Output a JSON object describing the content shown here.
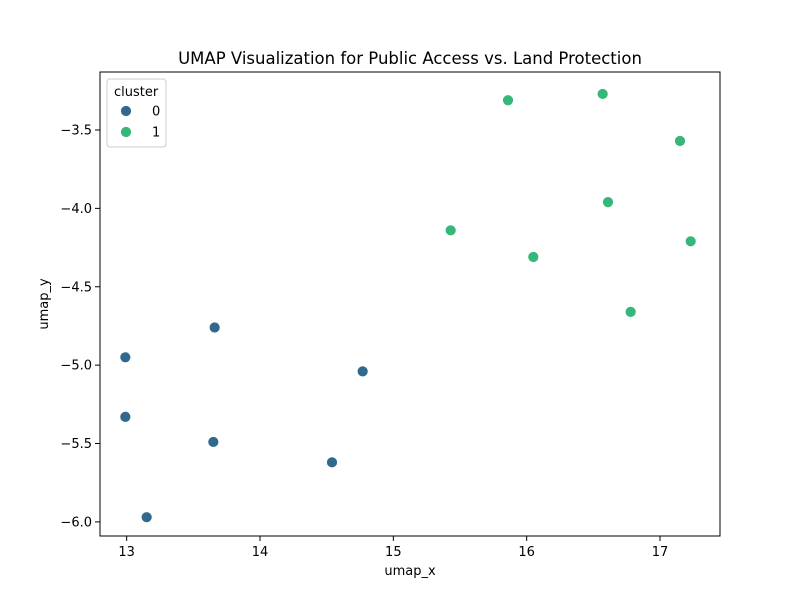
{
  "chart_data": {
    "type": "scatter",
    "title": "UMAP Visualization for Public Access vs. Land Protection",
    "xlabel": "umap_x",
    "ylabel": "umap_y",
    "xlim": [
      12.8,
      17.45
    ],
    "ylim": [
      -6.09,
      -3.13
    ],
    "xticks": [
      13,
      14,
      15,
      16,
      17
    ],
    "xtick_labels": [
      "13",
      "14",
      "15",
      "16",
      "17"
    ],
    "yticks": [
      -6.0,
      -5.5,
      -5.0,
      -4.5,
      -4.0,
      -3.5
    ],
    "ytick_labels": [
      "−6.0",
      "−5.5",
      "−5.0",
      "−4.5",
      "−4.0",
      "−3.5"
    ],
    "grid": false,
    "legend": {
      "title": "cluster",
      "placement": "top-left",
      "entries": [
        {
          "label": "0",
          "color": "#31688e"
        },
        {
          "label": "1",
          "color": "#35b779"
        }
      ]
    },
    "series": [
      {
        "name": "0",
        "color": "#31688e",
        "points": [
          {
            "x": 12.99,
            "y": -4.95
          },
          {
            "x": 12.99,
            "y": -5.33
          },
          {
            "x": 13.15,
            "y": -5.97
          },
          {
            "x": 13.65,
            "y": -5.49
          },
          {
            "x": 13.66,
            "y": -4.76
          },
          {
            "x": 14.54,
            "y": -5.62
          },
          {
            "x": 14.77,
            "y": -5.04
          }
        ]
      },
      {
        "name": "1",
        "color": "#35b779",
        "points": [
          {
            "x": 15.43,
            "y": -4.14
          },
          {
            "x": 15.86,
            "y": -3.31
          },
          {
            "x": 16.05,
            "y": -4.31
          },
          {
            "x": 16.57,
            "y": -3.27
          },
          {
            "x": 16.61,
            "y": -3.96
          },
          {
            "x": 16.78,
            "y": -4.66
          },
          {
            "x": 17.15,
            "y": -3.57
          },
          {
            "x": 17.23,
            "y": -4.21
          }
        ]
      }
    ]
  }
}
